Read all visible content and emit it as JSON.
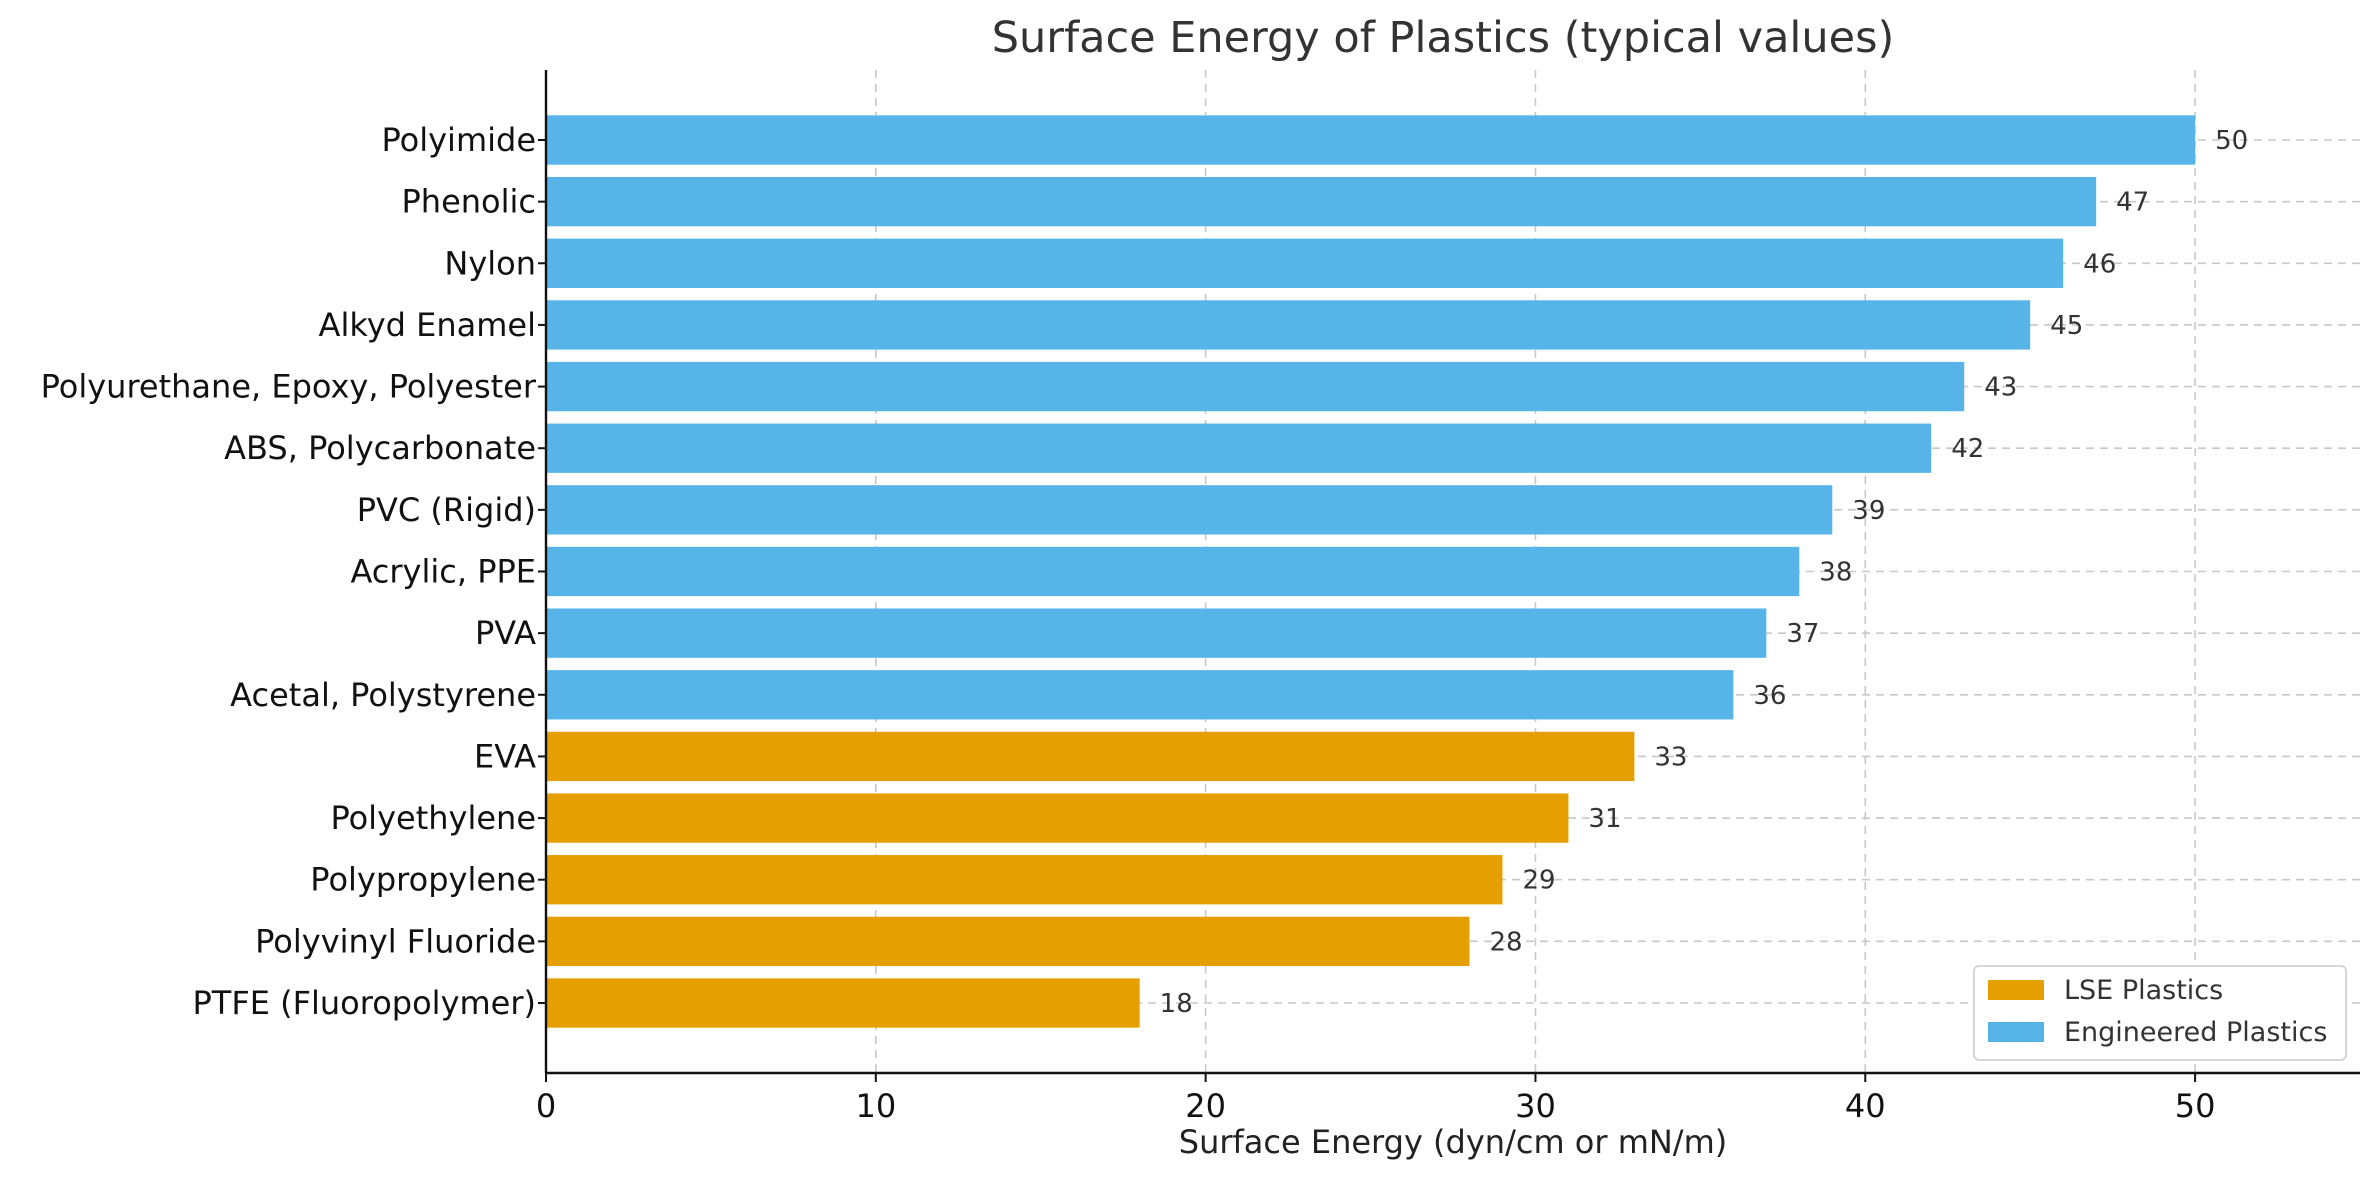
{
  "chart_data": {
    "type": "bar",
    "orientation": "horizontal",
    "title": "Surface Energy of Plastics (typical values)",
    "xlabel": "Surface Energy (dyn/cm or mN/m)",
    "ylabel": "",
    "xlim": [
      0,
      55
    ],
    "xticks": [
      0,
      10,
      20,
      30,
      40,
      50
    ],
    "grid": true,
    "legend_position": "lower-right",
    "categories": [
      "Polyimide",
      "Phenolic",
      "Nylon",
      "Alkyd Enamel",
      "Polyurethane, Epoxy, Polyester",
      "ABS, Polycarbonate",
      "PVC (Rigid)",
      "Acrylic, PPE",
      "PVA",
      "Acetal, Polystyrene",
      "EVA",
      "Polyethylene",
      "Polypropylene",
      "Polyvinyl Fluoride",
      "PTFE (Fluoropolymer)"
    ],
    "values": [
      50,
      47,
      46,
      45,
      43,
      42,
      39,
      38,
      37,
      36,
      33,
      31,
      29,
      28,
      18
    ],
    "groups": [
      "Engineered Plastics",
      "Engineered Plastics",
      "Engineered Plastics",
      "Engineered Plastics",
      "Engineered Plastics",
      "Engineered Plastics",
      "Engineered Plastics",
      "Engineered Plastics",
      "Engineered Plastics",
      "Engineered Plastics",
      "LSE Plastics",
      "LSE Plastics",
      "LSE Plastics",
      "LSE Plastics",
      "LSE Plastics"
    ],
    "series": [
      {
        "name": "LSE Plastics",
        "color": "#E69F00"
      },
      {
        "name": "Engineered Plastics",
        "color": "#56B4E9"
      }
    ]
  }
}
